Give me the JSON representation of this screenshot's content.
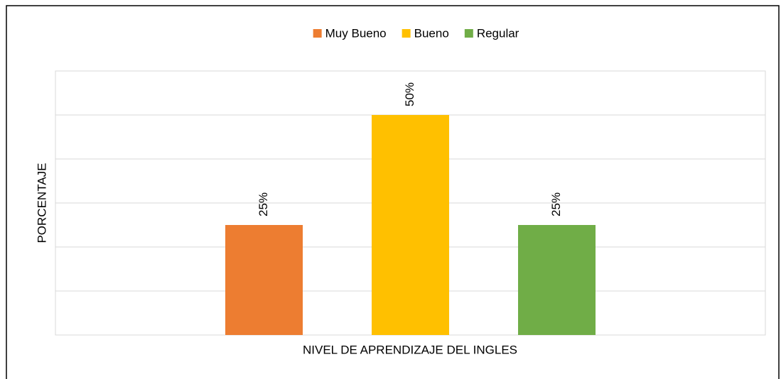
{
  "chart_data": {
    "type": "bar",
    "xlabel": "NIVEL DE APRENDIZAJE DEL INGLES",
    "ylabel": "PORCENTAJE",
    "series": [
      {
        "name": "Muy Bueno",
        "color": "#ed7d31",
        "values": [
          25
        ],
        "value_labels": [
          "25%"
        ]
      },
      {
        "name": "Bueno",
        "color": "#ffc000",
        "values": [
          50
        ],
        "value_labels": [
          "50%"
        ]
      },
      {
        "name": "Regular",
        "color": "#70ad47",
        "values": [
          25
        ],
        "value_labels": [
          "25%"
        ]
      }
    ],
    "ylim": [
      0,
      60
    ],
    "yticks": [
      0,
      10,
      20,
      30,
      40,
      50,
      60
    ],
    "grid": true,
    "legend": "top"
  }
}
